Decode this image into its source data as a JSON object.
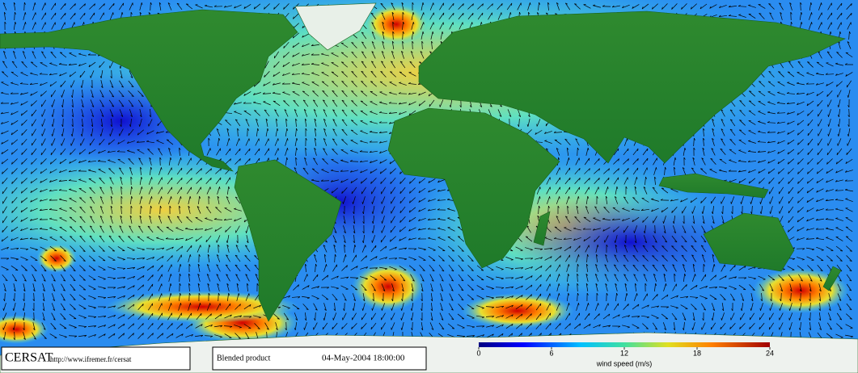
{
  "footer": {
    "logo": "CERSAT",
    "url": "http://www.ifremer.fr/cersat",
    "product": "Blended product",
    "timestamp": "04-May-2004 18:00:00"
  },
  "colorbar": {
    "label": "wind speed (m/s)",
    "range": [
      0,
      24
    ],
    "ticks": [
      0,
      6,
      12,
      18,
      24
    ]
  }
}
